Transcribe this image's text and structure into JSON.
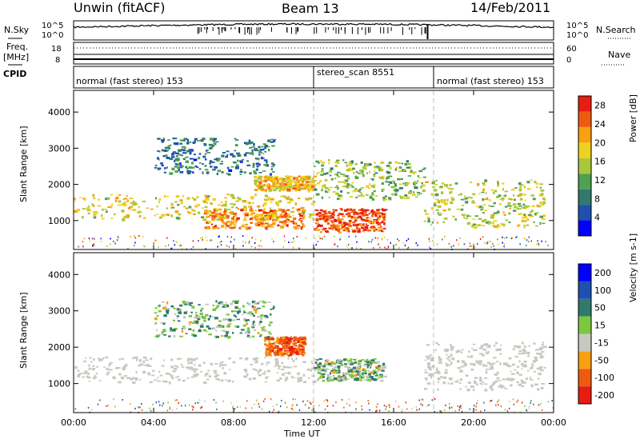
{
  "header": {
    "station": "Unwin (fitACF)",
    "beam": "Beam 13",
    "date": "14/Feb/2011"
  },
  "top_panels": {
    "nsky_label": "N.Sky",
    "nsky_ticks": [
      "10^5",
      "10^0"
    ],
    "nsearch_label": "N.Search",
    "nsearch_ticks": [
      "10^5",
      "10^0"
    ],
    "freq_label": "Freq.",
    "freq_unit": "[MHz]",
    "freq_ticks": [
      "18",
      "8"
    ],
    "nave_label": "Nave",
    "nave_ticks": [
      "60",
      "0"
    ],
    "cpid_label": "CPID"
  },
  "cpid_segments": [
    {
      "label": "normal (fast stereo) 153",
      "start_hour": 0,
      "end_hour": 12
    },
    {
      "label": "stereo_scan 8551",
      "start_hour": 12,
      "end_hour": 18
    },
    {
      "label": "normal (fast stereo) 153",
      "start_hour": 18,
      "end_hour": 24
    }
  ],
  "chart_data": [
    {
      "type": "heatmap",
      "xlabel": "Time UT",
      "ylabel": "Slant Range [km]",
      "xlim": [
        0,
        24
      ],
      "ylim": [
        200,
        4600
      ],
      "y_ticks": [
        1000,
        2000,
        3000,
        4000
      ],
      "colorbar": {
        "label": "Power [dB]",
        "ticks": [
          4,
          8,
          12,
          16,
          20,
          24,
          28
        ],
        "range": [
          0,
          30
        ],
        "colors": [
          "#0000ff",
          "#1f4fb0",
          "#2f7a6c",
          "#4fa050",
          "#a8c83a",
          "#f0d020",
          "#f8a010",
          "#f05a10",
          "#e81c10"
        ]
      },
      "echo_regions": [
        {
          "t0": 0.0,
          "t1": 12.0,
          "r0": 1050,
          "r1": 1750,
          "level": 18
        },
        {
          "t0": 6.5,
          "t1": 11.5,
          "r0": 800,
          "r1": 1350,
          "level": 23
        },
        {
          "t0": 9.0,
          "t1": 12.0,
          "r0": 1850,
          "r1": 2250,
          "level": 20
        },
        {
          "t0": 12.0,
          "t1": 15.5,
          "r0": 700,
          "r1": 1350,
          "level": 26
        },
        {
          "t0": 12.0,
          "t1": 17.5,
          "r0": 1600,
          "r1": 2700,
          "level": 14
        },
        {
          "t0": 17.5,
          "t1": 23.5,
          "r0": 850,
          "r1": 2150,
          "level": 16
        },
        {
          "t0": 4.0,
          "t1": 10.0,
          "r0": 2300,
          "r1": 3300,
          "level": 8
        }
      ]
    },
    {
      "type": "heatmap",
      "xlabel": "Time UT",
      "ylabel": "Slant Range [km]",
      "xlim": [
        0,
        24
      ],
      "ylim": [
        200,
        4600
      ],
      "y_ticks": [
        1000,
        2000,
        3000,
        4000
      ],
      "x_ticks": [
        "00:00",
        "04:00",
        "08:00",
        "12:00",
        "16:00",
        "20:00",
        "00:00"
      ],
      "colorbar": {
        "label": "Velocity [m s-1]",
        "ticks": [
          -200,
          -100,
          -50,
          -15,
          15,
          50,
          100,
          200
        ],
        "colors": [
          "#e81c10",
          "#f05a10",
          "#f8a010",
          "#c8c8c0",
          "#7ac840",
          "#2f7a6c",
          "#1f4fb0",
          "#0000ff"
        ]
      },
      "echo_regions": [
        {
          "t0": 0.0,
          "t1": 12.0,
          "r0": 1050,
          "r1": 1750,
          "level": 0
        },
        {
          "t0": 12.0,
          "t1": 15.5,
          "r0": 1100,
          "r1": 1700,
          "level": 30
        },
        {
          "t0": 9.5,
          "t1": 11.5,
          "r0": 1800,
          "r1": 2300,
          "level": -80
        },
        {
          "t0": 17.5,
          "t1": 23.5,
          "r0": 850,
          "r1": 2150,
          "level": 0
        },
        {
          "t0": 4.0,
          "t1": 10.0,
          "r0": 2300,
          "r1": 3300,
          "level": 40
        }
      ]
    }
  ]
}
